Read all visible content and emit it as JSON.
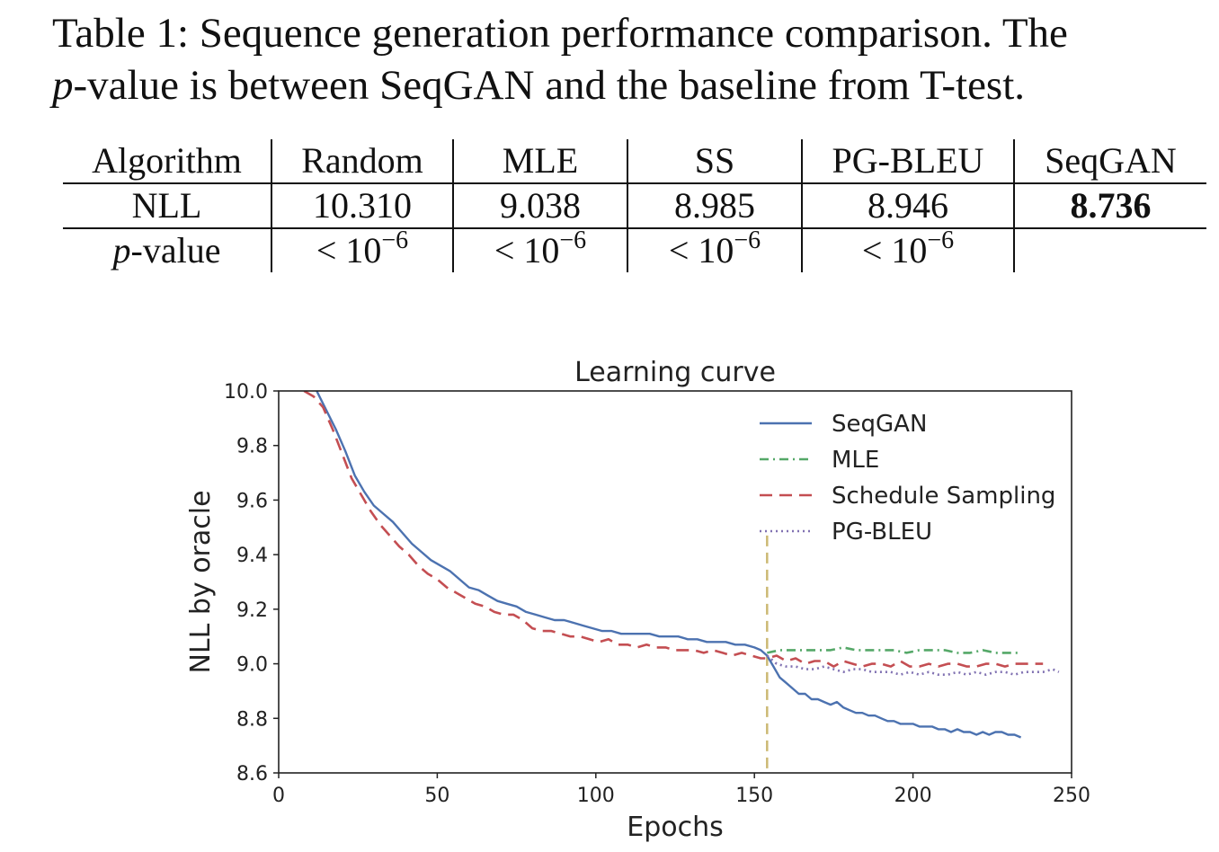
{
  "caption": {
    "label": "Table 1:",
    "text_a": " Sequence generation performance comparison. The",
    "p_symbol": "p",
    "text_b": "-value is between SeqGAN and the baseline from T-test."
  },
  "table": {
    "headers": [
      "Algorithm",
      "Random",
      "MLE",
      "SS",
      "PG-BLEU",
      "SeqGAN"
    ],
    "nll_label": "NLL",
    "nll_values": [
      "10.310",
      "9.038",
      "8.985",
      "8.946",
      "8.736"
    ],
    "pvalue_label_symbol": "p",
    "pvalue_label_rest": "-value",
    "pvalue_lt": "<",
    "pvalue_base": "10",
    "pvalue_exp": "−6",
    "best_column": "SeqGAN"
  },
  "chart_data": {
    "type": "line",
    "title": "Learning curve",
    "xlabel": "Epochs",
    "ylabel": "NLL by oracle",
    "xlim": [
      0,
      250
    ],
    "ylim": [
      8.6,
      10.0
    ],
    "xticks": [
      0,
      50,
      100,
      150,
      200,
      250
    ],
    "yticks": [
      8.6,
      8.8,
      9.0,
      9.2,
      9.4,
      9.6,
      9.8,
      10.0
    ],
    "grid": false,
    "legend_position": "top-right",
    "vline": {
      "x": 154,
      "y_top": 9.47,
      "color": "#ccb974",
      "style": "dashed"
    },
    "series": [
      {
        "name": "SeqGAN",
        "color": "#4c72b0",
        "style": "solid",
        "x": [
          12,
          15,
          18,
          21,
          24,
          27,
          30,
          33,
          36,
          39,
          42,
          45,
          48,
          51,
          54,
          57,
          60,
          63,
          66,
          69,
          72,
          75,
          78,
          81,
          84,
          87,
          90,
          93,
          96,
          99,
          102,
          105,
          108,
          111,
          114,
          117,
          120,
          123,
          126,
          129,
          132,
          135,
          138,
          141,
          144,
          147,
          150,
          152,
          154,
          156,
          158,
          160,
          162,
          164,
          166,
          168,
          170,
          172,
          174,
          176,
          178,
          180,
          182,
          184,
          186,
          188,
          190,
          192,
          194,
          196,
          198,
          200,
          202,
          204,
          206,
          208,
          210,
          212,
          214,
          216,
          218,
          220,
          222,
          224,
          226,
          228,
          230,
          232,
          234
        ],
        "y": [
          10.0,
          9.93,
          9.86,
          9.78,
          9.69,
          9.63,
          9.58,
          9.55,
          9.52,
          9.48,
          9.44,
          9.41,
          9.38,
          9.36,
          9.34,
          9.31,
          9.28,
          9.27,
          9.25,
          9.23,
          9.22,
          9.21,
          9.19,
          9.18,
          9.17,
          9.16,
          9.16,
          9.15,
          9.14,
          9.13,
          9.12,
          9.12,
          9.11,
          9.11,
          9.11,
          9.11,
          9.1,
          9.1,
          9.1,
          9.09,
          9.09,
          9.08,
          9.08,
          9.08,
          9.07,
          9.07,
          9.06,
          9.05,
          9.03,
          8.99,
          8.95,
          8.93,
          8.91,
          8.89,
          8.89,
          8.87,
          8.87,
          8.86,
          8.85,
          8.86,
          8.84,
          8.83,
          8.82,
          8.82,
          8.81,
          8.81,
          8.8,
          8.79,
          8.79,
          8.78,
          8.78,
          8.78,
          8.77,
          8.77,
          8.77,
          8.76,
          8.76,
          8.75,
          8.76,
          8.75,
          8.75,
          8.74,
          8.75,
          8.74,
          8.75,
          8.75,
          8.74,
          8.74,
          8.73
        ]
      },
      {
        "name": "MLE",
        "color": "#55a868",
        "style": "dashdot",
        "x": [
          154,
          158,
          162,
          166,
          170,
          174,
          178,
          182,
          186,
          190,
          194,
          198,
          202,
          206,
          210,
          214,
          218,
          222,
          226,
          230,
          234
        ],
        "y": [
          9.04,
          9.05,
          9.05,
          9.05,
          9.05,
          9.05,
          9.06,
          9.05,
          9.05,
          9.05,
          9.05,
          9.04,
          9.05,
          9.05,
          9.05,
          9.04,
          9.04,
          9.05,
          9.04,
          9.04,
          9.04
        ]
      },
      {
        "name": "Schedule Sampling",
        "color": "#c44e52",
        "style": "dashed",
        "x": [
          8,
          11,
          14,
          17,
          20,
          23,
          26,
          29,
          32,
          35,
          38,
          41,
          44,
          47,
          50,
          53,
          56,
          59,
          62,
          65,
          68,
          71,
          74,
          77,
          80,
          83,
          86,
          89,
          92,
          95,
          98,
          101,
          104,
          107,
          110,
          113,
          116,
          119,
          122,
          125,
          128,
          131,
          134,
          137,
          140,
          143,
          146,
          149,
          152,
          154,
          157,
          160,
          163,
          166,
          169,
          172,
          175,
          178,
          181,
          184,
          187,
          190,
          193,
          196,
          199,
          202,
          205,
          208,
          211,
          214,
          217,
          220,
          223,
          226,
          229,
          232,
          235,
          238,
          241
        ],
        "y": [
          10.0,
          9.98,
          9.94,
          9.86,
          9.77,
          9.68,
          9.62,
          9.56,
          9.51,
          9.47,
          9.43,
          9.4,
          9.36,
          9.33,
          9.31,
          9.28,
          9.26,
          9.24,
          9.22,
          9.21,
          9.19,
          9.18,
          9.18,
          9.16,
          9.13,
          9.12,
          9.12,
          9.11,
          9.1,
          9.1,
          9.09,
          9.08,
          9.09,
          9.07,
          9.07,
          9.06,
          9.07,
          9.06,
          9.06,
          9.05,
          9.05,
          9.05,
          9.04,
          9.05,
          9.04,
          9.03,
          9.04,
          9.03,
          9.02,
          9.02,
          9.03,
          9.01,
          9.02,
          9.0,
          9.01,
          9.01,
          8.99,
          9.01,
          9.0,
          8.99,
          9.0,
          9.0,
          8.99,
          9.01,
          8.99,
          8.99,
          9.0,
          8.99,
          9.0,
          9.0,
          8.99,
          8.99,
          9.0,
          9.0,
          8.99,
          9.0,
          9.0,
          9.0,
          9.0
        ]
      },
      {
        "name": "PG-BLEU",
        "color": "#8172b2",
        "style": "dotted",
        "x": [
          154,
          157,
          160,
          163,
          166,
          169,
          172,
          175,
          178,
          181,
          184,
          187,
          190,
          193,
          196,
          199,
          202,
          205,
          208,
          211,
          214,
          217,
          220,
          223,
          226,
          229,
          232,
          235,
          238,
          241,
          244,
          246
        ],
        "y": [
          9.03,
          9.0,
          8.99,
          8.99,
          8.98,
          8.98,
          8.99,
          8.98,
          8.97,
          8.98,
          8.98,
          8.97,
          8.97,
          8.97,
          8.96,
          8.97,
          8.96,
          8.97,
          8.96,
          8.96,
          8.97,
          8.96,
          8.97,
          8.96,
          8.97,
          8.97,
          8.96,
          8.97,
          8.97,
          8.97,
          8.98,
          8.97
        ]
      }
    ]
  }
}
